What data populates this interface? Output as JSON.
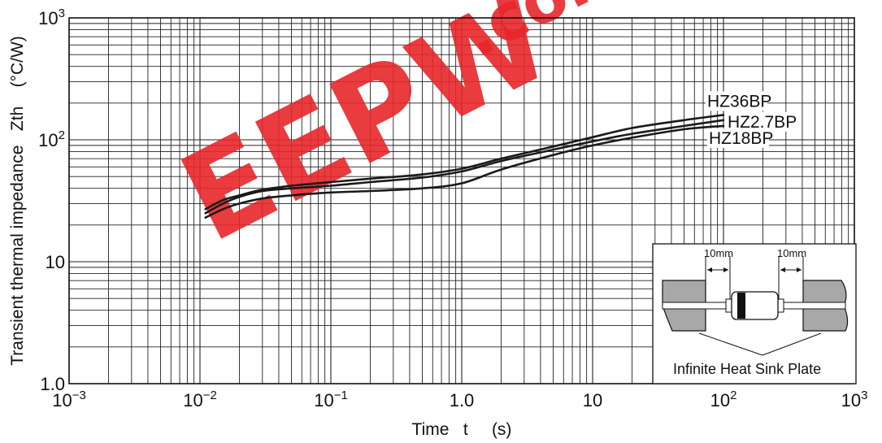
{
  "chart_data": {
    "type": "line",
    "xlabel": "Time   t     (s)",
    "ylabel": "Transient thermal impedance   Zth    (°C/W)",
    "x_scale": "log",
    "y_scale": "log",
    "xlim": [
      0.001,
      1000
    ],
    "ylim": [
      1,
      1000
    ],
    "grid": true,
    "x_ticks": [
      {
        "base": "10",
        "exp": "−3",
        "value": 0.001
      },
      {
        "base": "10",
        "exp": "−2",
        "value": 0.01
      },
      {
        "base": "10",
        "exp": "−1",
        "value": 0.1
      },
      {
        "base": "1.0",
        "exp": "",
        "value": 1
      },
      {
        "base": "10",
        "exp": "",
        "value": 10
      },
      {
        "base": "10",
        "exp": "2",
        "value": 100
      },
      {
        "base": "10",
        "exp": "3",
        "value": 1000
      }
    ],
    "y_ticks": [
      {
        "base": "1.0",
        "exp": "",
        "value": 1
      },
      {
        "base": "10",
        "exp": "",
        "value": 10
      },
      {
        "base": "10",
        "exp": "2",
        "value": 100
      },
      {
        "base": "10",
        "exp": "3",
        "value": 1000
      }
    ],
    "series": [
      {
        "name": "HZ36BP",
        "x": [
          0.011,
          0.015,
          0.02,
          0.03,
          0.05,
          0.1,
          0.2,
          0.5,
          1,
          2,
          5,
          10,
          20,
          50,
          100
        ],
        "y": [
          27,
          32,
          35,
          39,
          42,
          45,
          48,
          52,
          58,
          70,
          88,
          105,
          125,
          145,
          160
        ]
      },
      {
        "name": "HZ2.7BP",
        "x": [
          0.011,
          0.015,
          0.02,
          0.03,
          0.05,
          0.1,
          0.2,
          0.5,
          1,
          2,
          5,
          10,
          20,
          50,
          100
        ],
        "y": [
          25,
          30,
          34,
          38,
          40,
          42,
          45,
          49,
          55,
          67,
          83,
          97,
          112,
          130,
          145
        ]
      },
      {
        "name": "HZ18BP",
        "x": [
          0.011,
          0.015,
          0.02,
          0.03,
          0.05,
          0.1,
          0.2,
          0.5,
          1,
          2,
          5,
          10,
          20,
          50,
          100
        ],
        "y": [
          23,
          27,
          30,
          33,
          35,
          37,
          38,
          40,
          44,
          57,
          75,
          90,
          104,
          122,
          130
        ]
      }
    ]
  },
  "inset": {
    "caption": "Infinite Heat Sink Plate",
    "dim_left": "10mm",
    "dim_right": "10mm"
  },
  "watermark": {
    "text_main": "EEPW",
    "text_suffix": ".com"
  }
}
